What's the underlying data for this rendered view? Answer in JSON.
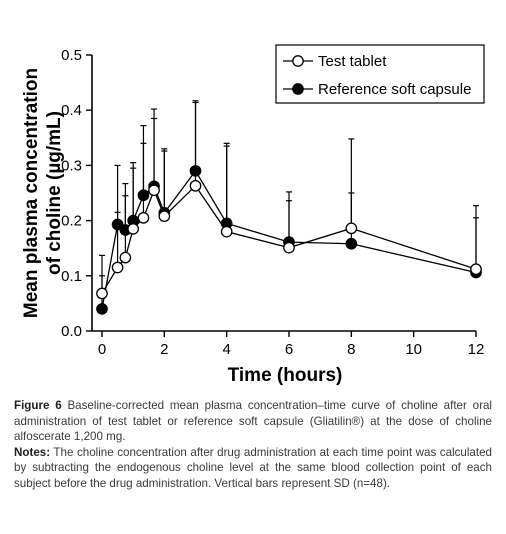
{
  "chart_data": {
    "type": "line",
    "ylabel_line1": "Mean plasma concentration",
    "ylabel_line2": "of choline (µg/mL)",
    "xlabel": "Time (hours)",
    "xlim": [
      0,
      12
    ],
    "ylim": [
      0,
      0.5
    ],
    "xticks": [
      0,
      2,
      4,
      6,
      8,
      10,
      12
    ],
    "xtick_labels": [
      "0",
      "2",
      "4",
      "6",
      "8",
      "10",
      "12"
    ],
    "yticks": [
      0,
      0.1,
      0.2,
      0.3,
      0.4,
      0.5
    ],
    "ytick_labels": [
      "0.0",
      "0.1",
      "0.2",
      "0.3",
      "0.4",
      "0.5"
    ],
    "grid": false,
    "legend_position": "top-right",
    "series": [
      {
        "name": "Test tablet",
        "marker": "open-circle",
        "x": [
          0,
          0.5,
          0.75,
          1,
          1.33,
          1.67,
          2,
          3,
          4,
          6,
          8,
          12
        ],
        "y": [
          0.068,
          0.115,
          0.133,
          0.185,
          0.205,
          0.255,
          0.208,
          0.263,
          0.18,
          0.151,
          0.186,
          0.112
        ],
        "sd_upper": [
          0.137,
          0.3,
          0.267,
          0.305,
          0.372,
          0.402,
          0.33,
          0.417,
          0.34,
          0.252,
          0.348,
          0.227
        ]
      },
      {
        "name": "Reference soft capsule",
        "marker": "filled-circle",
        "x": [
          0,
          0.5,
          0.75,
          1,
          1.33,
          1.67,
          2,
          3,
          4,
          6,
          8,
          12
        ],
        "y": [
          0.04,
          0.193,
          0.183,
          0.2,
          0.246,
          0.262,
          0.214,
          0.29,
          0.195,
          0.161,
          0.158,
          0.106
        ],
        "sd_upper": [
          0.1,
          0.215,
          0.245,
          0.295,
          0.34,
          0.385,
          0.326,
          0.414,
          0.335,
          0.236,
          0.25,
          0.205
        ]
      }
    ]
  },
  "caption": {
    "figure_label": "Figure 6",
    "figure_text": "Baseline-corrected mean plasma concentration–time curve of choline after oral administration of test tablet or reference soft capsule (Gliatilin®) at the dose of choline alfoscerate 1,200 mg.",
    "notes_label": "Notes:",
    "notes_text": "The choline concentration after drug administration at each time point was calculated by subtracting the endogenous choline level at the same blood collection point of each subject before the drug administration. Vertical bars represent SD (n=48)."
  }
}
